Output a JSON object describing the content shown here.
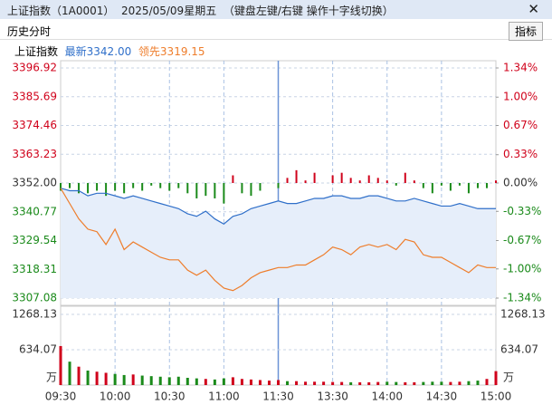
{
  "header": {
    "title": "上证指数（1A0001）",
    "date": "2025/05/09星期五",
    "hint": "（键盘左键/右键 操作十字线切换）",
    "tab": "历史分时",
    "button": "指标",
    "index_name": "上证指数",
    "latest": "最新3342.00",
    "leading": "领先3319.15"
  },
  "chart_data": {
    "type": "line",
    "x": [
      0,
      5,
      10,
      15,
      20,
      25,
      30,
      35,
      40,
      45,
      50,
      55,
      60,
      65,
      70,
      75,
      80,
      85,
      90,
      95,
      100,
      105,
      110,
      115,
      120,
      125,
      130,
      135,
      140,
      145,
      150,
      155,
      160,
      165,
      170,
      175,
      180,
      185,
      190,
      195,
      200,
      205,
      210,
      215,
      220,
      225,
      230,
      235,
      240
    ],
    "xlim": [
      0,
      240
    ],
    "xticks": [
      {
        "value": 0,
        "label": "09:30"
      },
      {
        "value": 30,
        "label": "10:00"
      },
      {
        "value": 60,
        "label": "10:30"
      },
      {
        "value": 90,
        "label": "11:00"
      },
      {
        "value": 120,
        "label": "11:30"
      },
      {
        "value": 150,
        "label": "13:30"
      },
      {
        "value": 180,
        "label": "14:00"
      },
      {
        "value": 210,
        "label": "14:30"
      },
      {
        "value": 240,
        "label": "15:00"
      }
    ],
    "ylim": [
      3307.08,
      3396.92
    ],
    "yticks": [
      3396.92,
      3385.69,
      3374.46,
      3363.23,
      {
        "value": 3352,
        "label": "3352.00"
      },
      3340.77,
      3329.54,
      3318.31,
      3307.08
    ],
    "y2lim": [
      -1.34,
      1.34
    ],
    "y2ticks": [
      {
        "value": 1.34,
        "label": "1.34%"
      },
      {
        "value": 1,
        "label": "1.00%"
      },
      {
        "value": 0.67,
        "label": "0.67%"
      },
      {
        "value": 0.33,
        "label": "0.33%"
      },
      {
        "value": 0,
        "label": "0.00%"
      },
      {
        "value": -0.33,
        "label": "-0.33%"
      },
      {
        "value": -0.67,
        "label": "-0.67%"
      },
      {
        "value": -1,
        "label": "-1.00%"
      },
      {
        "value": -1.34,
        "label": "-1.34%"
      }
    ],
    "series": [
      {
        "color": "#2f6fc9",
        "values": [
          3350,
          3349,
          3349,
          3347,
          3348,
          3348,
          3347,
          3346,
          3347,
          3346,
          3345,
          3344,
          3343,
          3342,
          3340,
          3339,
          3341,
          3338,
          3336,
          3339,
          3340,
          3342,
          3343,
          3344,
          3345,
          3344,
          3344,
          3345,
          3346,
          3346,
          3347,
          3347,
          3346,
          3346,
          3347,
          3347,
          3346,
          3345,
          3345,
          3346,
          3345,
          3344,
          3343,
          3343,
          3344,
          3343,
          3342,
          3342,
          3342
        ]
      },
      {
        "color": "#ee7d2b",
        "values": [
          3350,
          3344,
          3338,
          3334,
          3333,
          3328,
          3334,
          3326,
          3329,
          3327,
          3325,
          3323,
          3322,
          3322,
          3318,
          3316,
          3318,
          3314,
          3311,
          3310,
          3312,
          3315,
          3317,
          3318,
          3319,
          3319,
          3320,
          3320,
          3322,
          3324,
          3327,
          3326,
          3324,
          3327,
          3328,
          3327,
          3328,
          3326,
          3330,
          3329,
          3324,
          3323,
          3323,
          3321,
          3319,
          3317,
          3320,
          3319,
          3319
        ]
      }
    ],
    "bars": [
      3349,
      3350,
      3348,
      3348,
      3349,
      3347,
      3349,
      3348,
      3350,
      3349,
      3351,
      3350,
      3349,
      3350,
      3348,
      3346,
      3347,
      3346,
      3344,
      3355,
      3348,
      3347,
      3349,
      3352,
      3350,
      3354,
      3357,
      3353,
      3356,
      3352,
      3355,
      3356,
      3354,
      3353,
      3355,
      3354,
      3353,
      3351,
      3356,
      3353,
      3350,
      3348,
      3351,
      3349,
      3351,
      3348,
      3350,
      3350,
      3353
    ],
    "volume": [
      700,
      420,
      330,
      260,
      240,
      220,
      200,
      180,
      190,
      170,
      160,
      150,
      140,
      150,
      130,
      120,
      110,
      100,
      120,
      140,
      110,
      100,
      90,
      80,
      90,
      70,
      70,
      60,
      60,
      60,
      55,
      55,
      50,
      50,
      50,
      55,
      60,
      55,
      50,
      50,
      55,
      60,
      60,
      55,
      60,
      70,
      80,
      110,
      250
    ],
    "vlim": [
      0,
      1268.13
    ],
    "vticks": [
      1268.13,
      634.07
    ],
    "volume_unit": "万",
    "up_color": "#d0021b",
    "down_color": "#1a8a1a",
    "grid": true
  }
}
